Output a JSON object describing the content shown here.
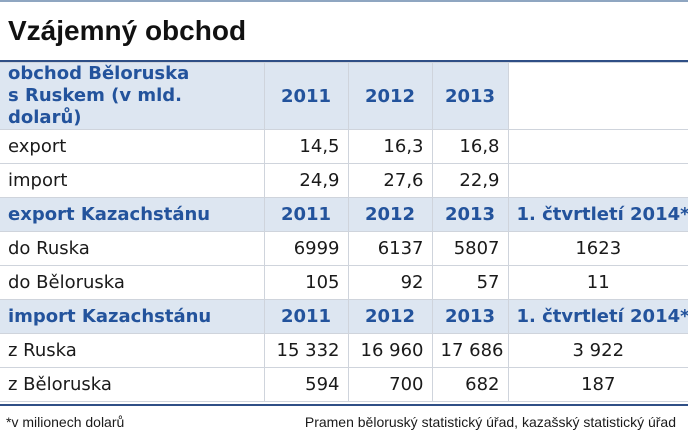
{
  "title": "Vzájemný obchod",
  "section1": {
    "header_label_line1": "obchod Běloruska",
    "header_label_line2": "s Ruskem (v mld. dolarů)",
    "years": [
      "2011",
      "2012",
      "2013"
    ],
    "rows": [
      {
        "label": "export",
        "values": [
          "14,5",
          "16,3",
          "16,8"
        ]
      },
      {
        "label": "import",
        "values": [
          "24,9",
          "27,6",
          "22,9"
        ]
      }
    ]
  },
  "section2": {
    "header_label": "export Kazachstánu",
    "years": [
      "2011",
      "2012",
      "2013"
    ],
    "quarter": "1. čtvrtletí 2014*",
    "rows": [
      {
        "label": "do Ruska",
        "values": [
          "6999",
          "6137",
          "5807"
        ],
        "q": "1623"
      },
      {
        "label": "do Běloruska",
        "values": [
          "105",
          "92",
          "57"
        ],
        "q": "11"
      }
    ]
  },
  "section3": {
    "header_label": "import Kazachstánu",
    "years": [
      "2011",
      "2012",
      "2013"
    ],
    "quarter": "1. čtvrtletí 2014*",
    "rows": [
      {
        "label": "z Ruska",
        "values": [
          "15 332",
          "16 960",
          "17 686"
        ],
        "q": "3 922"
      },
      {
        "label": "z Běloruska",
        "values": [
          "594",
          "700",
          "682"
        ],
        "q": "187"
      }
    ]
  },
  "footer": {
    "note": "*v milionech dolarů",
    "source": "Pramen běloruský statistický úřad, kazašský statistický úřad"
  }
}
